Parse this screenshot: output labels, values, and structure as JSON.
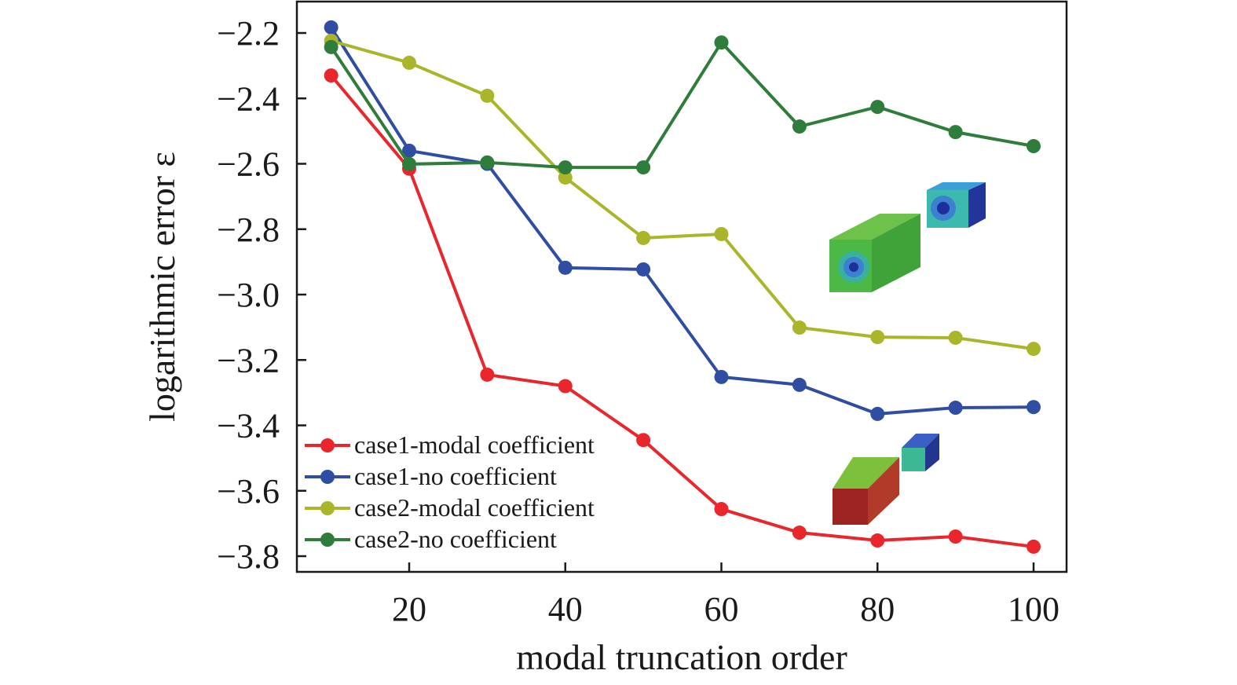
{
  "chart_data": {
    "type": "line",
    "title": "",
    "xlabel": "modal truncation order",
    "ylabel": "logarithmic error ε",
    "xlim": [
      8,
      104
    ],
    "ylim": [
      -3.84,
      -2.1
    ],
    "xticks": [
      20,
      40,
      60,
      80,
      100
    ],
    "xtick_labels": [
      "20",
      "40",
      "60",
      "80",
      "100"
    ],
    "yticks": [
      -2.2,
      -2.4,
      -2.6,
      -2.8,
      -3.0,
      -3.2,
      -3.4,
      -3.6,
      -3.8
    ],
    "ytick_labels": [
      "−2.2",
      "−2.4",
      "−2.6",
      "−2.8",
      "−3.0",
      "−3.2",
      "−3.4",
      "−3.6",
      "−3.8"
    ],
    "grid": false,
    "legend_position": "bottom-left",
    "x": [
      10,
      20,
      30,
      40,
      50,
      60,
      70,
      80,
      90,
      100
    ],
    "series": [
      {
        "name": "case1-modal coefficient",
        "color": "#e8262b",
        "values": [
          -2.33,
          -2.615,
          -3.245,
          -3.28,
          -3.445,
          -3.656,
          -3.728,
          -3.752,
          -3.74,
          -3.771
        ]
      },
      {
        "name": "case1-no coefficient",
        "color": "#2f4ea3",
        "values": [
          -2.183,
          -2.56,
          -2.6,
          -2.918,
          -2.923,
          -3.252,
          -3.276,
          -3.365,
          -3.346,
          -3.344
        ]
      },
      {
        "name": "case2-modal coefficient",
        "color": "#aab52a",
        "values": [
          -2.224,
          -2.291,
          -2.392,
          -2.642,
          -2.827,
          -2.815,
          -3.101,
          -3.13,
          -3.132,
          -3.166
        ]
      },
      {
        "name": "case2-no coefficient",
        "color": "#2e7d3a",
        "values": [
          -2.243,
          -2.601,
          -2.596,
          -2.611,
          -2.611,
          -2.229,
          -2.486,
          -2.426,
          -2.503,
          -2.546
        ]
      }
    ]
  }
}
